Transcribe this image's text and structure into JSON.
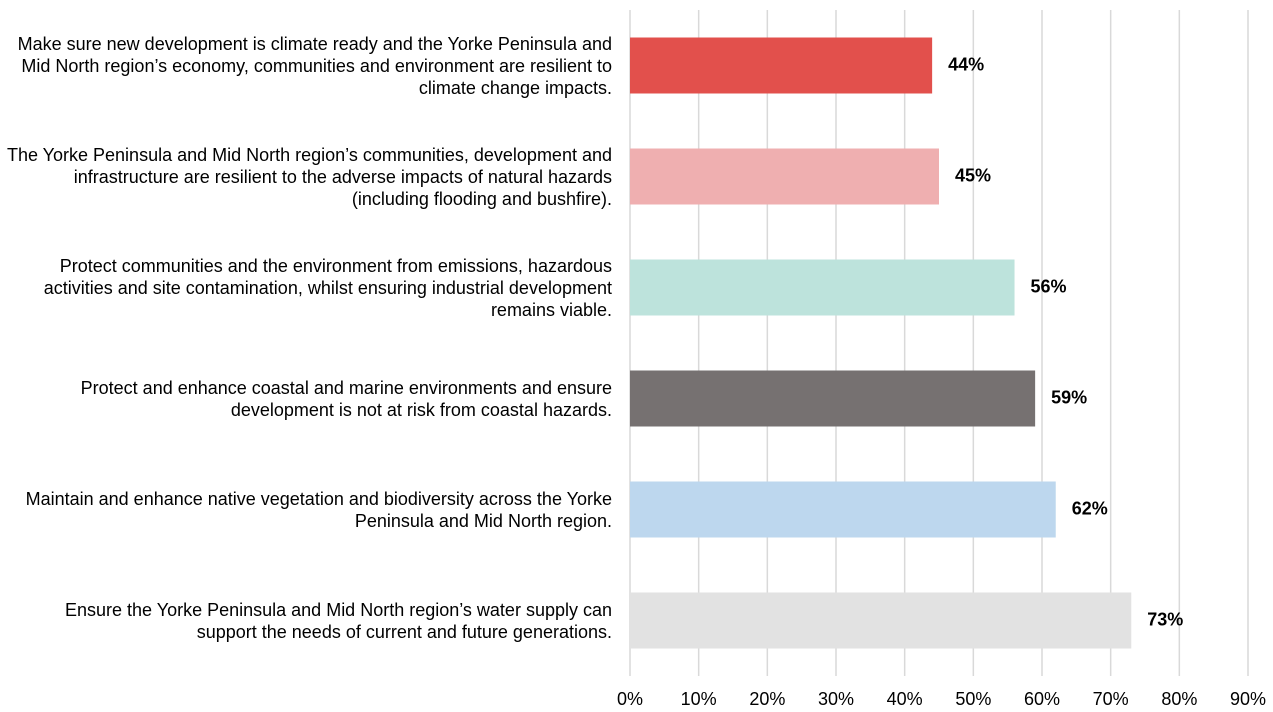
{
  "chart_data": {
    "type": "barh",
    "categories": [
      "Make sure new development is climate ready and the Yorke Peninsula and Mid North region’s economy, communities and environment are resilient to climate change impacts.",
      "The Yorke Peninsula and Mid North region’s communities, development and infrastructure are resilient to the adverse impacts of natural hazards (including flooding and bushfire).",
      "Protect communities and the environment from emissions, hazardous activities and site contamination, whilst ensuring industrial development remains viable.",
      "Protect and enhance coastal and marine environments and ensure development is not at risk from coastal hazards.",
      "Maintain and enhance native vegetation and biodiversity across the Yorke Peninsula and Mid North region.",
      "Ensure the Yorke Peninsula and Mid North region’s water supply can support the needs of current and future generations."
    ],
    "values": [
      44,
      45,
      56,
      59,
      62,
      73
    ],
    "value_labels": [
      "44%",
      "45%",
      "56%",
      "59%",
      "62%",
      "73%"
    ],
    "colors": [
      "#e2504c",
      "#efafb0",
      "#bde3dc",
      "#767171",
      "#bdd7ee",
      "#e2e2e2"
    ],
    "xlim": [
      0,
      90
    ],
    "xticks": [
      {
        "value": 0,
        "label": "0%"
      },
      {
        "value": 10,
        "label": "10%"
      },
      {
        "value": 20,
        "label": "20%"
      },
      {
        "value": 30,
        "label": "30%"
      },
      {
        "value": 40,
        "label": "40%"
      },
      {
        "value": 50,
        "label": "50%"
      },
      {
        "value": 60,
        "label": "60%"
      },
      {
        "value": 70,
        "label": "70%"
      },
      {
        "value": 80,
        "label": "80%"
      },
      {
        "value": 90,
        "label": "90%"
      }
    ],
    "grid": true
  }
}
